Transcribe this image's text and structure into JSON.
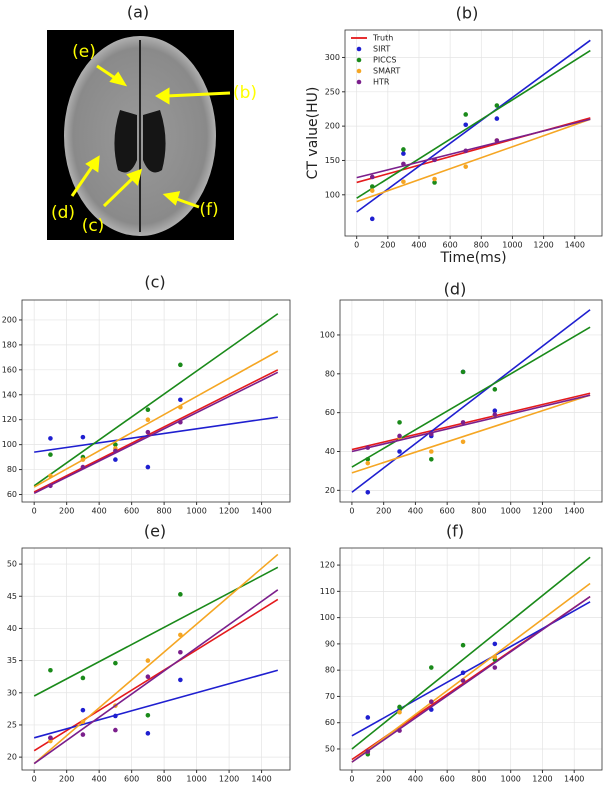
{
  "image_panel": {
    "title": "(a)",
    "labels": [
      "(e)",
      "(b)",
      "(d)",
      "(c)",
      "(f)"
    ]
  },
  "chart_data": [
    {
      "type": "scatter",
      "title": "(b)",
      "xlabel": "Time(ms)",
      "ylabel": "CT value(HU)",
      "grid": true,
      "legend": "upper left",
      "xlim": [
        -75,
        1575
      ],
      "ylim": [
        40,
        340
      ],
      "xticks": [
        0,
        200,
        400,
        600,
        800,
        1000,
        1200,
        1400
      ],
      "yticks": [
        100,
        150,
        200,
        250,
        300
      ],
      "x": [
        100,
        300,
        500,
        700,
        900
      ],
      "line_x": [
        0,
        1500
      ],
      "series": [
        {
          "name": "Truth",
          "color": "#e41a1c",
          "line": [
            118,
            212
          ]
        },
        {
          "name": "SIRT",
          "color": "#1f1fd0",
          "values": [
            65,
            160,
            151,
            202,
            211
          ],
          "line": [
            75,
            325
          ]
        },
        {
          "name": "PICCS",
          "color": "#1a8a1a",
          "values": [
            112,
            166,
            118,
            217,
            230
          ],
          "line": [
            95,
            310
          ]
        },
        {
          "name": "SMART",
          "color": "#f5a623",
          "values": [
            106,
            119,
            123,
            141,
            179
          ],
          "line": [
            90,
            210
          ]
        },
        {
          "name": "HTR",
          "color": "#7b1f8c",
          "values": [
            126,
            145,
            151,
            164,
            179
          ],
          "line": [
            125,
            210
          ]
        }
      ]
    },
    {
      "type": "scatter",
      "title": "(c)",
      "grid": true,
      "xlim": [
        -75,
        1575
      ],
      "ylim": [
        54,
        216
      ],
      "xticks": [
        0,
        200,
        400,
        600,
        800,
        1000,
        1200,
        1400
      ],
      "yticks": [
        60,
        80,
        100,
        120,
        140,
        160,
        180,
        200
      ],
      "x": [
        100,
        300,
        500,
        700,
        900
      ],
      "line_x": [
        0,
        1500
      ],
      "series": [
        {
          "color": "#e41a1c",
          "line": [
            62,
            160
          ]
        },
        {
          "color": "#1f1fd0",
          "values": [
            105,
            106,
            88,
            82,
            136
          ],
          "line": [
            94,
            122
          ]
        },
        {
          "color": "#1a8a1a",
          "values": [
            92,
            90,
            100,
            128,
            164
          ],
          "line": [
            67,
            205
          ]
        },
        {
          "color": "#f5a623",
          "values": [
            75,
            88,
            97,
            120,
            130
          ],
          "line": [
            66,
            175
          ]
        },
        {
          "color": "#7b1f8c",
          "values": [
            67,
            82,
            95,
            110,
            118
          ],
          "line": [
            61,
            158
          ]
        }
      ]
    },
    {
      "type": "scatter",
      "title": "(d)",
      "grid": true,
      "xlim": [
        -75,
        1575
      ],
      "ylim": [
        14,
        118
      ],
      "xticks": [
        0,
        200,
        400,
        600,
        800,
        1000,
        1200,
        1400
      ],
      "yticks": [
        20,
        40,
        60,
        80,
        100
      ],
      "x": [
        100,
        300,
        500,
        700,
        900
      ],
      "line_x": [
        0,
        1500
      ],
      "series": [
        {
          "color": "#e41a1c",
          "line": [
            41,
            70
          ]
        },
        {
          "color": "#1f1fd0",
          "values": [
            19,
            40,
            48,
            81,
            61
          ],
          "line": [
            19,
            113
          ]
        },
        {
          "color": "#1a8a1a",
          "values": [
            36,
            55,
            36,
            81,
            72
          ],
          "line": [
            32,
            104
          ]
        },
        {
          "color": "#f5a623",
          "values": [
            34,
            47,
            40,
            45,
            58
          ],
          "line": [
            29,
            69
          ]
        },
        {
          "color": "#7b1f8c",
          "values": [
            42,
            48,
            49,
            55,
            59
          ],
          "line": [
            40,
            69
          ]
        }
      ]
    },
    {
      "type": "scatter",
      "title": "(e)",
      "grid": true,
      "xlim": [
        -75,
        1575
      ],
      "ylim": [
        18,
        52.5
      ],
      "xticks": [
        0,
        200,
        400,
        600,
        800,
        1000,
        1200,
        1400
      ],
      "yticks": [
        20,
        25,
        30,
        35,
        40,
        45,
        50
      ],
      "x": [
        100,
        300,
        500,
        700,
        900
      ],
      "line_x": [
        0,
        1500
      ],
      "series": [
        {
          "color": "#e41a1c",
          "line": [
            21,
            44.5
          ]
        },
        {
          "color": "#1f1fd0",
          "values": [
            23,
            27.3,
            26.4,
            23.7,
            32
          ],
          "line": [
            23,
            33.5
          ]
        },
        {
          "color": "#1a8a1a",
          "values": [
            33.5,
            32.3,
            34.6,
            26.5,
            45.3
          ],
          "line": [
            29.5,
            49.5
          ]
        },
        {
          "color": "#f5a623",
          "values": [
            22.5,
            25.5,
            28,
            35,
            39
          ],
          "line": [
            19,
            51.5
          ]
        },
        {
          "color": "#7b1f8c",
          "values": [
            23,
            23.5,
            24.2,
            32.5,
            36.3
          ],
          "line": [
            19,
            46
          ]
        }
      ]
    },
    {
      "type": "scatter",
      "title": "(f)",
      "grid": true,
      "xlim": [
        -75,
        1575
      ],
      "ylim": [
        42,
        126.5
      ],
      "xticks": [
        0,
        200,
        400,
        600,
        800,
        1000,
        1200,
        1400
      ],
      "yticks": [
        50,
        60,
        70,
        80,
        90,
        100,
        110,
        120
      ],
      "x": [
        100,
        300,
        500,
        700,
        900
      ],
      "line_x": [
        0,
        1500
      ],
      "series": [
        {
          "color": "#e41a1c",
          "line": [
            46,
            108
          ]
        },
        {
          "color": "#1f1fd0",
          "values": [
            62,
            65,
            65,
            79,
            90
          ],
          "line": [
            55,
            106
          ]
        },
        {
          "color": "#1a8a1a",
          "values": [
            48,
            66,
            81,
            89.5,
            84
          ],
          "line": [
            50,
            123
          ]
        },
        {
          "color": "#f5a623",
          "values": [
            49,
            64,
            68,
            76,
            85
          ],
          "line": [
            45,
            113
          ]
        },
        {
          "color": "#7b1f8c",
          "values": [
            49,
            57,
            68,
            76,
            81
          ],
          "line": [
            45,
            108
          ]
        }
      ]
    }
  ]
}
